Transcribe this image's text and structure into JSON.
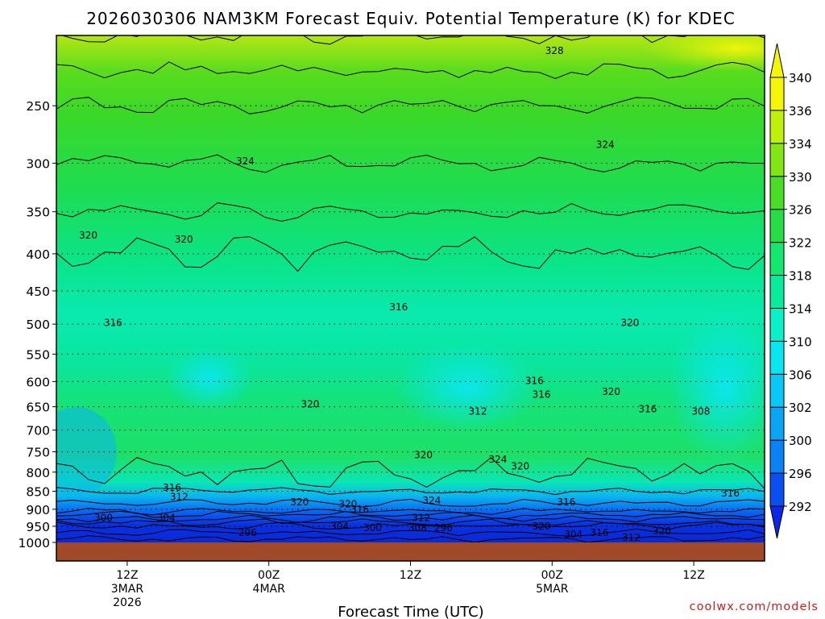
{
  "chart_data": {
    "type": "heatmap",
    "title": "2026030306 NAM3KM Forecast Equiv. Potential Temperature (K) for KDEC",
    "xlabel": "Forecast Time (UTC)",
    "ylabel": "",
    "variable": "Equivalent Potential Temperature (K)",
    "y_axis": {
      "units": "hPa",
      "scale": "log-pressure",
      "range": [
        1000,
        200
      ],
      "ticks": [
        250,
        300,
        350,
        400,
        450,
        500,
        550,
        600,
        650,
        700,
        750,
        800,
        850,
        900,
        950,
        1000
      ]
    },
    "x_axis": {
      "range_hours": [
        0,
        60
      ],
      "ticks": [
        {
          "hour": 6,
          "line1": "12Z",
          "line2": "3MAR",
          "line3": "2026"
        },
        {
          "hour": 18,
          "line1": "00Z",
          "line2": "4MAR",
          "line3": ""
        },
        {
          "hour": 30,
          "line1": "12Z",
          "line2": "",
          "line3": ""
        },
        {
          "hour": 42,
          "line1": "00Z",
          "line2": "5MAR",
          "line3": ""
        },
        {
          "hour": 54,
          "line1": "12Z",
          "line2": "",
          "line3": ""
        }
      ]
    },
    "colorbar": {
      "levels": [
        292,
        296,
        300,
        302,
        306,
        310,
        314,
        318,
        322,
        326,
        330,
        334,
        336,
        340
      ],
      "colors": [
        "#0a28e6",
        "#0a50f0",
        "#0a82f5",
        "#0aa5f5",
        "#0ac8f5",
        "#0ae6f0",
        "#0af0c8",
        "#0aeb9b",
        "#14e66e",
        "#28dc46",
        "#4bdc28",
        "#82e614",
        "#bef00a",
        "#f5f50a"
      ]
    },
    "profile_mean_K": [
      {
        "p": 1000,
        "theta_e": 299
      },
      {
        "p": 950,
        "theta_e": 304
      },
      {
        "p": 900,
        "theta_e": 313
      },
      {
        "p": 850,
        "theta_e": 316
      },
      {
        "p": 800,
        "theta_e": 318
      },
      {
        "p": 750,
        "theta_e": 318
      },
      {
        "p": 700,
        "theta_e": 317
      },
      {
        "p": 650,
        "theta_e": 316
      },
      {
        "p": 600,
        "theta_e": 315
      },
      {
        "p": 550,
        "theta_e": 315
      },
      {
        "p": 500,
        "theta_e": 316
      },
      {
        "p": 450,
        "theta_e": 318
      },
      {
        "p": 400,
        "theta_e": 320
      },
      {
        "p": 350,
        "theta_e": 322
      },
      {
        "p": 300,
        "theta_e": 324
      },
      {
        "p": 250,
        "theta_e": 326
      },
      {
        "p": 200,
        "theta_e": 330
      }
    ],
    "contour_labels": [
      {
        "value": "328",
        "hour": 42.2,
        "p": 210
      },
      {
        "value": "324",
        "hour": 16.0,
        "p": 298
      },
      {
        "value": "324",
        "hour": 46.5,
        "p": 283
      },
      {
        "value": "320",
        "hour": 2.7,
        "p": 377
      },
      {
        "value": "320",
        "hour": 10.8,
        "p": 382
      },
      {
        "value": "316",
        "hour": 4.8,
        "p": 498
      },
      {
        "value": "316",
        "hour": 29.0,
        "p": 474
      },
      {
        "value": "320",
        "hour": 48.6,
        "p": 498
      },
      {
        "value": "316",
        "hour": 40.5,
        "p": 599
      },
      {
        "value": "316",
        "hour": 41.1,
        "p": 625
      },
      {
        "value": "320",
        "hour": 47.0,
        "p": 620
      },
      {
        "value": "316",
        "hour": 50.1,
        "p": 655
      },
      {
        "value": "308",
        "hour": 54.6,
        "p": 660
      },
      {
        "value": "320",
        "hour": 21.5,
        "p": 645
      },
      {
        "value": "312",
        "hour": 35.7,
        "p": 660
      },
      {
        "value": "320",
        "hour": 31.1,
        "p": 758
      },
      {
        "value": "324",
        "hour": 37.4,
        "p": 768
      },
      {
        "value": "320",
        "hour": 39.3,
        "p": 785
      },
      {
        "value": "316",
        "hour": 9.8,
        "p": 840
      },
      {
        "value": "312",
        "hour": 10.4,
        "p": 865
      },
      {
        "value": "320",
        "hour": 20.6,
        "p": 880
      },
      {
        "value": "320",
        "hour": 24.7,
        "p": 885
      },
      {
        "value": "316",
        "hour": 25.7,
        "p": 900
      },
      {
        "value": "324",
        "hour": 31.8,
        "p": 875
      },
      {
        "value": "316",
        "hour": 43.2,
        "p": 880
      },
      {
        "value": "316",
        "hour": 57.1,
        "p": 855
      },
      {
        "value": "312",
        "hour": 30.9,
        "p": 925
      },
      {
        "value": "300",
        "hour": 4.0,
        "p": 925
      },
      {
        "value": "304",
        "hour": 9.3,
        "p": 925
      },
      {
        "value": "296",
        "hour": 16.2,
        "p": 970
      },
      {
        "value": "304",
        "hour": 24.0,
        "p": 950
      },
      {
        "value": "300",
        "hour": 26.8,
        "p": 955
      },
      {
        "value": "308",
        "hour": 30.6,
        "p": 955
      },
      {
        "value": "296",
        "hour": 32.8,
        "p": 955
      },
      {
        "value": "320",
        "hour": 41.1,
        "p": 950
      },
      {
        "value": "304",
        "hour": 43.8,
        "p": 975
      },
      {
        "value": "316",
        "hour": 46.0,
        "p": 970
      },
      {
        "value": "312",
        "hour": 48.7,
        "p": 985
      },
      {
        "value": "320",
        "hour": 51.3,
        "p": 965
      }
    ]
  },
  "credit": "coolwx.com/models"
}
